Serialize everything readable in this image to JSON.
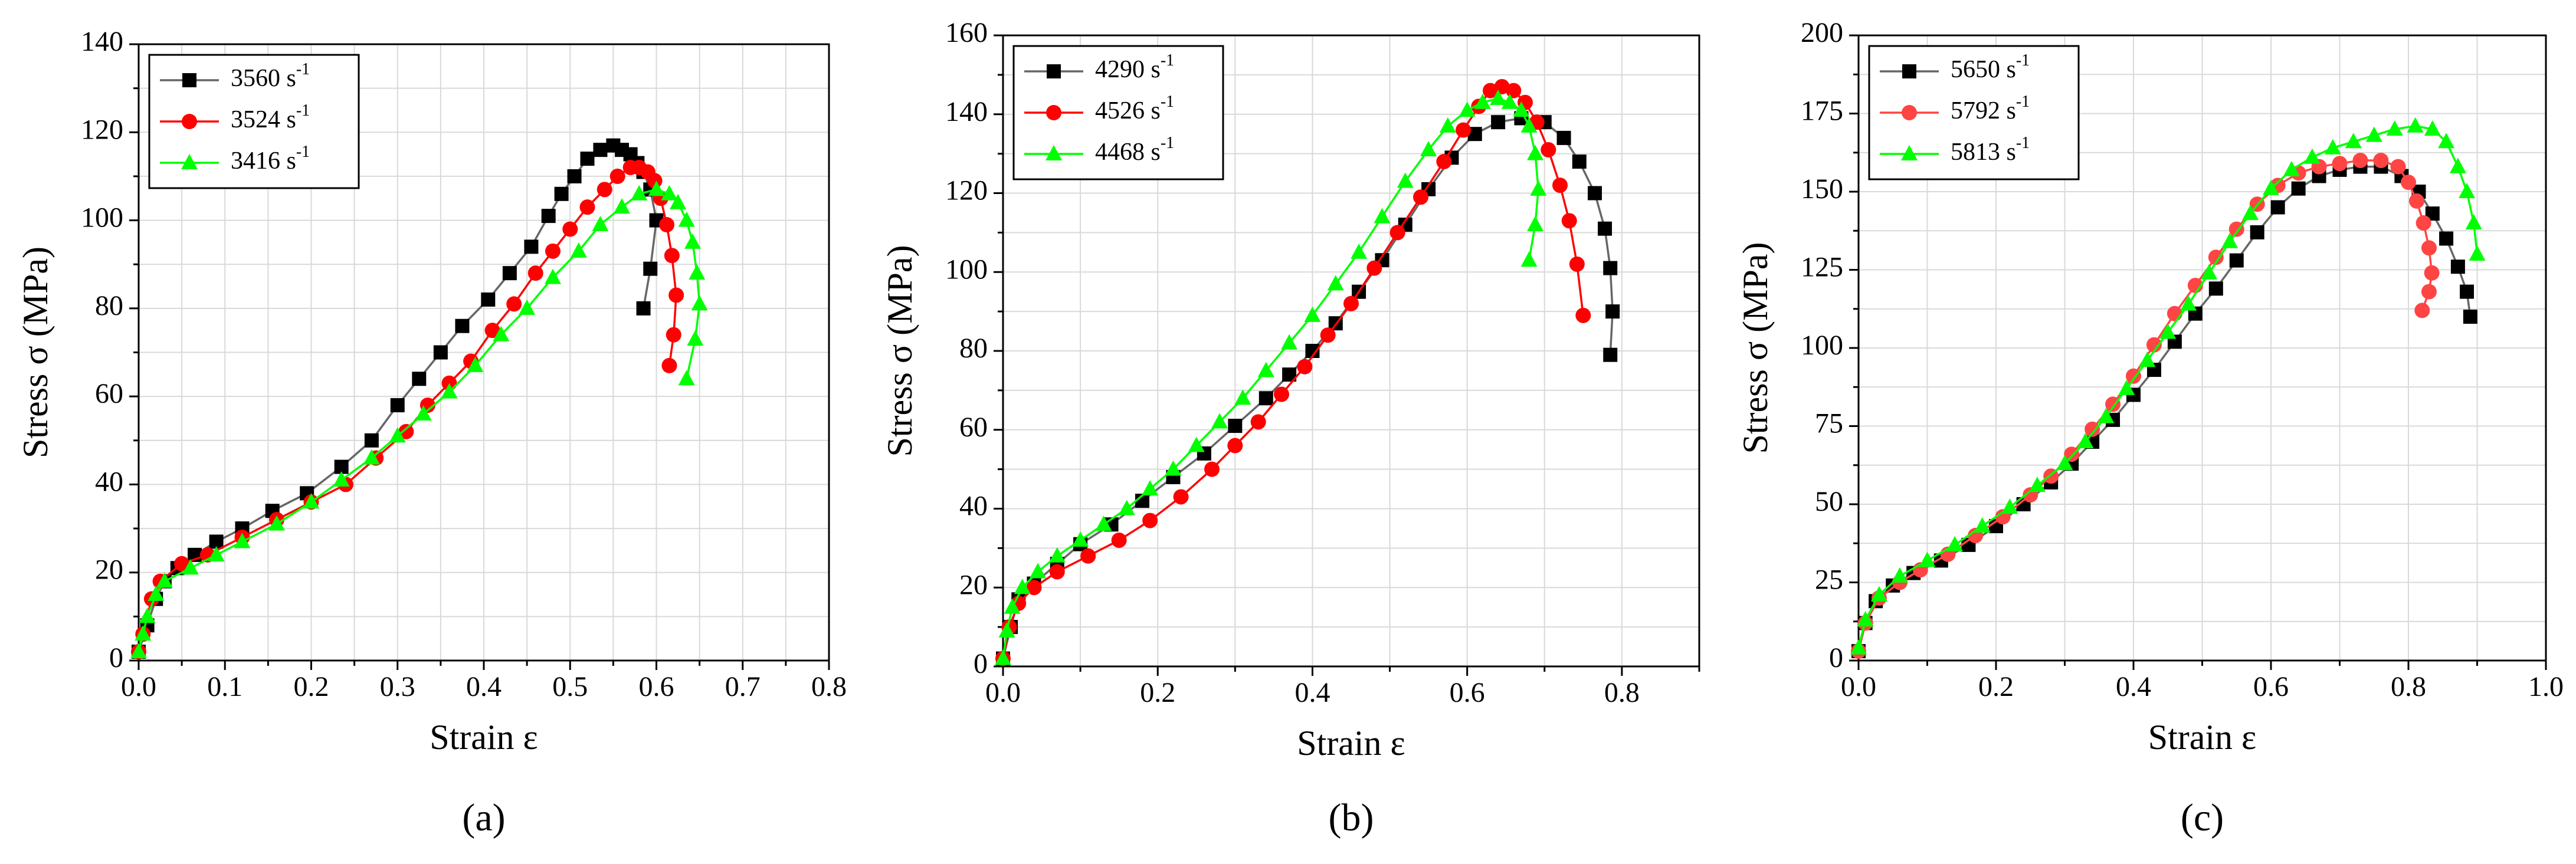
{
  "figure": {
    "background": "#ffffff"
  },
  "chart_data": [
    {
      "type": "line",
      "panel_label": "(a)",
      "xlabel": "Strain ε",
      "ylabel": "Stress σ (MPa)",
      "xlim": [
        0.0,
        0.8
      ],
      "ylim": [
        0,
        140
      ],
      "xticks": [
        0.0,
        0.1,
        0.2,
        0.3,
        0.4,
        0.5,
        0.6,
        0.7,
        0.8
      ],
      "xtick_labels": [
        "0.0",
        "0.1",
        "0.2",
        "0.3",
        "0.4",
        "0.5",
        "0.6",
        "0.7",
        "0.8"
      ],
      "yticks": [
        0,
        20,
        40,
        60,
        80,
        100,
        120,
        140
      ],
      "ytick_labels": [
        "0",
        "20",
        "40",
        "60",
        "80",
        "100",
        "120",
        "140"
      ],
      "grid": true,
      "legend_position": "top-left",
      "series": [
        {
          "name": "3560 s⁻¹",
          "color": "#000000",
          "line_color": "#666666",
          "marker": "square",
          "x": [
            0.0,
            0.01,
            0.02,
            0.03,
            0.045,
            0.065,
            0.09,
            0.12,
            0.155,
            0.195,
            0.235,
            0.27,
            0.3,
            0.325,
            0.35,
            0.375,
            0.405,
            0.43,
            0.455,
            0.475,
            0.49,
            0.505,
            0.52,
            0.535,
            0.55,
            0.56,
            0.57,
            0.578,
            0.585,
            0.593,
            0.6,
            0.593,
            0.585
          ],
          "y": [
            2,
            8,
            14,
            18,
            21,
            24,
            27,
            30,
            34,
            38,
            44,
            50,
            58,
            64,
            70,
            76,
            82,
            88,
            94,
            101,
            106,
            110,
            114,
            116,
            117,
            116,
            115,
            113,
            111,
            107,
            100,
            89,
            80
          ]
        },
        {
          "name": "3524 s⁻¹",
          "color": "#ff0000",
          "line_color": "#ff0000",
          "marker": "circle",
          "x": [
            0.0,
            0.005,
            0.015,
            0.025,
            0.05,
            0.08,
            0.12,
            0.16,
            0.2,
            0.24,
            0.275,
            0.31,
            0.335,
            0.36,
            0.385,
            0.41,
            0.435,
            0.46,
            0.48,
            0.5,
            0.52,
            0.54,
            0.555,
            0.57,
            0.58,
            0.59,
            0.598,
            0.605,
            0.612,
            0.618,
            0.623,
            0.62,
            0.615
          ],
          "y": [
            2,
            6,
            14,
            18,
            22,
            24,
            28,
            32,
            36,
            40,
            46,
            52,
            58,
            63,
            68,
            75,
            81,
            88,
            93,
            98,
            103,
            107,
            110,
            112,
            112,
            111,
            109,
            105,
            99,
            92,
            83,
            74,
            67
          ]
        },
        {
          "name": "3416 s⁻¹",
          "color": "#00ff00",
          "line_color": "#00ff00",
          "marker": "triangle",
          "x": [
            0.0,
            0.005,
            0.01,
            0.02,
            0.03,
            0.06,
            0.09,
            0.12,
            0.16,
            0.2,
            0.235,
            0.27,
            0.3,
            0.33,
            0.36,
            0.39,
            0.42,
            0.45,
            0.48,
            0.51,
            0.535,
            0.56,
            0.58,
            0.6,
            0.615,
            0.625,
            0.635,
            0.642,
            0.647,
            0.65,
            0.645,
            0.635
          ],
          "y": [
            2,
            6,
            10,
            15,
            18,
            21,
            24,
            27,
            31,
            36,
            41,
            46,
            51,
            56,
            61,
            67,
            74,
            80,
            87,
            93,
            99,
            103,
            106,
            107,
            106,
            104,
            100,
            95,
            88,
            81,
            73,
            64
          ]
        }
      ]
    },
    {
      "type": "line",
      "panel_label": "(b)",
      "xlabel": "Strain ε",
      "ylabel": "Stress σ (MPa)",
      "xlim": [
        0.0,
        0.9
      ],
      "ylim": [
        0,
        160
      ],
      "xticks": [
        0.0,
        0.2,
        0.4,
        0.6,
        0.8
      ],
      "xtick_labels": [
        "0.0",
        "0.2",
        "0.4",
        "0.6",
        "0.8"
      ],
      "yticks": [
        0,
        20,
        40,
        60,
        80,
        100,
        120,
        140,
        160
      ],
      "ytick_labels": [
        "0",
        "20",
        "40",
        "60",
        "80",
        "100",
        "120",
        "140",
        "160"
      ],
      "grid": true,
      "legend_position": "top-left",
      "series": [
        {
          "name": "4290 s⁻¹",
          "color": "#000000",
          "line_color": "#666666",
          "marker": "square",
          "x": [
            0.0,
            0.01,
            0.02,
            0.04,
            0.07,
            0.1,
            0.14,
            0.18,
            0.22,
            0.26,
            0.3,
            0.34,
            0.37,
            0.4,
            0.43,
            0.46,
            0.49,
            0.52,
            0.55,
            0.58,
            0.61,
            0.64,
            0.67,
            0.7,
            0.725,
            0.745,
            0.765,
            0.778,
            0.785,
            0.788,
            0.785
          ],
          "y": [
            2,
            10,
            17,
            21,
            26,
            31,
            36,
            42,
            48,
            54,
            61,
            68,
            74,
            80,
            87,
            95,
            103,
            112,
            121,
            129,
            135,
            138,
            139,
            138,
            134,
            128,
            120,
            111,
            101,
            90,
            79
          ]
        },
        {
          "name": "4526 s⁻¹",
          "color": "#ff0000",
          "line_color": "#ff0000",
          "marker": "circle",
          "x": [
            0.0,
            0.008,
            0.02,
            0.04,
            0.07,
            0.11,
            0.15,
            0.19,
            0.23,
            0.27,
            0.3,
            0.33,
            0.36,
            0.39,
            0.42,
            0.45,
            0.48,
            0.51,
            0.54,
            0.57,
            0.595,
            0.615,
            0.63,
            0.645,
            0.66,
            0.675,
            0.69,
            0.705,
            0.72,
            0.732,
            0.742,
            0.75
          ],
          "y": [
            2,
            10,
            16,
            20,
            24,
            28,
            32,
            37,
            43,
            50,
            56,
            62,
            69,
            76,
            84,
            92,
            101,
            110,
            119,
            128,
            136,
            142,
            146,
            147,
            146,
            143,
            138,
            131,
            122,
            113,
            102,
            89
          ]
        },
        {
          "name": "4468 s⁻¹",
          "color": "#00ff00",
          "line_color": "#00ff00",
          "marker": "triangle",
          "x": [
            0.0,
            0.005,
            0.012,
            0.025,
            0.045,
            0.07,
            0.1,
            0.13,
            0.16,
            0.19,
            0.22,
            0.25,
            0.28,
            0.31,
            0.34,
            0.37,
            0.4,
            0.43,
            0.46,
            0.49,
            0.52,
            0.55,
            0.575,
            0.6,
            0.62,
            0.64,
            0.655,
            0.67,
            0.68,
            0.688,
            0.692,
            0.688,
            0.68
          ],
          "y": [
            2,
            9,
            15,
            20,
            24,
            28,
            32,
            36,
            40,
            45,
            50,
            56,
            62,
            68,
            75,
            82,
            89,
            97,
            105,
            114,
            123,
            131,
            137,
            141,
            143,
            144,
            143,
            141,
            137,
            130,
            121,
            112,
            103
          ]
        }
      ]
    },
    {
      "type": "line",
      "panel_label": "(c)",
      "xlabel": "Strain ε",
      "ylabel": "Stress σ (MPa)",
      "xlim": [
        0.0,
        1.0
      ],
      "ylim": [
        0,
        200
      ],
      "xticks": [
        0.0,
        0.2,
        0.4,
        0.6,
        0.8,
        1.0
      ],
      "xtick_labels": [
        "0.0",
        "0.2",
        "0.4",
        "0.6",
        "0.8",
        "1.0"
      ],
      "yticks": [
        0,
        25,
        50,
        75,
        100,
        125,
        150,
        175,
        200
      ],
      "ytick_labels": [
        "0",
        "25",
        "50",
        "75",
        "100",
        "125",
        "150",
        "175",
        "200"
      ],
      "grid": true,
      "legend_position": "top-left",
      "series": [
        {
          "name": "5650 s⁻¹",
          "color": "#000000",
          "line_color": "#666666",
          "marker": "square",
          "x": [
            0.0,
            0.01,
            0.025,
            0.05,
            0.08,
            0.12,
            0.16,
            0.2,
            0.24,
            0.28,
            0.31,
            0.34,
            0.37,
            0.4,
            0.43,
            0.46,
            0.49,
            0.52,
            0.55,
            0.58,
            0.61,
            0.64,
            0.67,
            0.7,
            0.73,
            0.76,
            0.79,
            0.815,
            0.835,
            0.855,
            0.872,
            0.885,
            0.89
          ],
          "y": [
            3,
            12,
            19,
            24,
            28,
            32,
            37,
            43,
            50,
            57,
            63,
            70,
            77,
            85,
            93,
            102,
            111,
            119,
            128,
            137,
            145,
            151,
            155,
            157,
            158,
            158,
            155,
            150,
            143,
            135,
            126,
            118,
            110
          ]
        },
        {
          "name": "5792 s⁻¹",
          "color": "#ff4444",
          "line_color": "#ff4444",
          "marker": "circle",
          "x": [
            0.0,
            0.01,
            0.03,
            0.06,
            0.09,
            0.13,
            0.17,
            0.21,
            0.25,
            0.28,
            0.31,
            0.34,
            0.37,
            0.4,
            0.43,
            0.46,
            0.49,
            0.52,
            0.55,
            0.58,
            0.61,
            0.64,
            0.67,
            0.7,
            0.73,
            0.76,
            0.785,
            0.8,
            0.812,
            0.822,
            0.83,
            0.834,
            0.83,
            0.82
          ],
          "y": [
            3,
            12,
            20,
            25,
            29,
            34,
            40,
            46,
            53,
            59,
            66,
            74,
            82,
            91,
            101,
            111,
            120,
            129,
            138,
            146,
            152,
            156,
            158,
            159,
            160,
            160,
            158,
            153,
            147,
            140,
            132,
            124,
            118,
            112
          ]
        },
        {
          "name": "5813 s⁻¹",
          "color": "#00ff00",
          "line_color": "#00ff00",
          "marker": "triangle",
          "x": [
            0.0,
            0.01,
            0.03,
            0.06,
            0.1,
            0.14,
            0.18,
            0.22,
            0.26,
            0.3,
            0.33,
            0.36,
            0.39,
            0.42,
            0.45,
            0.48,
            0.51,
            0.54,
            0.57,
            0.6,
            0.63,
            0.66,
            0.69,
            0.72,
            0.75,
            0.78,
            0.81,
            0.835,
            0.855,
            0.872,
            0.885,
            0.895,
            0.9
          ],
          "y": [
            4,
            13,
            21,
            27,
            32,
            37,
            43,
            49,
            56,
            63,
            70,
            78,
            87,
            96,
            105,
            114,
            124,
            134,
            143,
            151,
            157,
            161,
            164,
            166,
            168,
            170,
            171,
            170,
            166,
            158,
            150,
            140,
            130
          ]
        }
      ]
    }
  ]
}
